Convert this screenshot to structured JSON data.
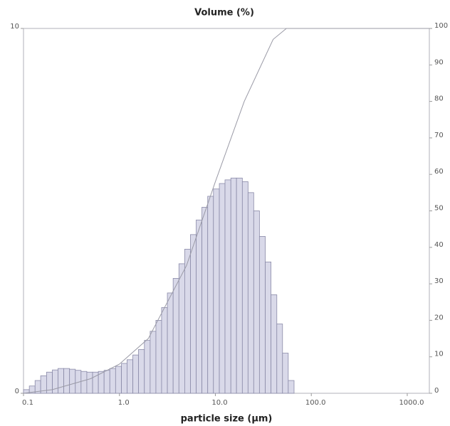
{
  "chart_data": {
    "type": "histogram",
    "title": "Volume (%)",
    "xlabel": "particle size (µm)",
    "xscale": "log",
    "xlim": [
      0.1,
      1700
    ],
    "xticks": [
      {
        "value": 0.1,
        "label": "0.1"
      },
      {
        "value": 1,
        "label": "1.0"
      },
      {
        "value": 10,
        "label": "10.0"
      },
      {
        "value": 100,
        "label": "100.0"
      },
      {
        "value": 1000,
        "label": "1000.0"
      }
    ],
    "ylim": [
      0,
      10
    ],
    "yticks": [
      0,
      10
    ],
    "y2lim": [
      0,
      100
    ],
    "y2ticks": [
      0,
      10,
      20,
      30,
      40,
      50,
      60,
      70,
      80,
      90,
      100
    ],
    "color": "#d9d9e9",
    "edgecolor": "#8a8aa8",
    "bins": [
      0.1,
      0.115,
      0.132,
      0.151,
      0.174,
      0.2,
      0.229,
      0.263,
      0.302,
      0.347,
      0.398,
      0.457,
      0.525,
      0.603,
      0.692,
      0.794,
      0.912,
      1.05,
      1.2,
      1.38,
      1.58,
      1.82,
      2.09,
      2.4,
      2.75,
      3.16,
      3.63,
      4.17,
      4.79,
      5.5,
      6.31,
      7.24,
      8.32,
      9.55,
      11,
      12.6,
      14.5,
      16.6,
      19.1,
      21.9,
      25.1,
      28.8,
      33.1,
      38,
      43.7,
      50.1,
      57.5,
      66.1
    ],
    "values": [
      0.1,
      0.2,
      0.35,
      0.48,
      0.58,
      0.64,
      0.68,
      0.68,
      0.66,
      0.63,
      0.6,
      0.58,
      0.58,
      0.6,
      0.63,
      0.68,
      0.74,
      0.82,
      0.92,
      1.05,
      1.2,
      1.45,
      1.7,
      2.0,
      2.35,
      2.75,
      3.15,
      3.55,
      3.95,
      4.35,
      4.75,
      5.1,
      5.4,
      5.6,
      5.75,
      5.85,
      5.9,
      5.9,
      5.8,
      5.5,
      5.0,
      4.3,
      3.6,
      2.7,
      1.9,
      1.1,
      0.35
    ],
    "series": [
      {
        "color": "#9a9aa6",
        "axis": "y2",
        "x": [
          0.1,
          0.2,
          0.5,
          1,
          2,
          5,
          10,
          20,
          40,
          55,
          1700
        ],
        "values": [
          0,
          1,
          4,
          8,
          15,
          35,
          58,
          80,
          97,
          100,
          100
        ]
      }
    ]
  }
}
